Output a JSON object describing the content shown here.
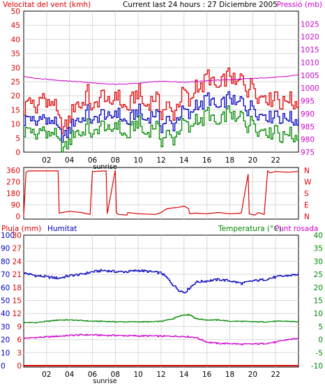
{
  "header": {
    "left_title": "Velocitat del vent (kmh)",
    "center_title": "Current last 24 hours : 27 Diciembre 2005",
    "right_title": "Pressió (mb)"
  },
  "bottom_header": {
    "left_title": "Pluja (mm)",
    "humidity_title": "Humitat",
    "temp_title": "Temperatura (°C)",
    "dew_title": "Punt rosada"
  },
  "colors": {
    "wind": "#dd0000",
    "gust": "#0000bb",
    "avg": "#008800",
    "pressure": "#cc00cc",
    "direction": "#dd0000",
    "humidity": "#0000bb",
    "temperature": "#008800",
    "dew": "#cc00cc",
    "rain": "#dd0000",
    "axis_left": "#dd0000",
    "axis_right": "#cc00cc",
    "axis_green": "#008800",
    "frame": "#000000",
    "grid": "#d8d8d8"
  },
  "chart_data": [
    {
      "type": "line",
      "name": "wind_pressure",
      "x_ticks": [
        "02",
        "04",
        "06",
        "08",
        "10",
        "12",
        "14",
        "16",
        "18",
        "20",
        "22"
      ],
      "x_annotation": "sunrise",
      "left_axis": {
        "ticks": [
          0,
          5,
          10,
          15,
          20,
          25,
          30,
          35,
          40,
          45,
          50
        ],
        "range": [
          0,
          50
        ]
      },
      "right_axis": {
        "ticks": [
          975,
          980,
          985,
          990,
          995,
          1000,
          1005,
          1010,
          1015,
          1020,
          1025
        ],
        "range": [
          975,
          1030
        ]
      },
      "series": [
        {
          "key": "wind_max",
          "axis": "left",
          "x": [
            0,
            0.5,
            1,
            1.5,
            2,
            2.5,
            3,
            3.5,
            4,
            4.5,
            5,
            5.5,
            6,
            6.5,
            7,
            7.5,
            8,
            8.5,
            9,
            9.5,
            10,
            10.5,
            11,
            11.5,
            12,
            12.5,
            13,
            13.5,
            14,
            14.5,
            15,
            15.5,
            16,
            16.5,
            17,
            17.5,
            18,
            18.5,
            19,
            19.5,
            20,
            20.5,
            21,
            21.5,
            22,
            22.5,
            23,
            23.5,
            24
          ],
          "values": [
            15,
            20,
            13,
            22,
            16,
            19,
            11,
            8,
            12,
            18,
            16,
            22,
            14,
            19,
            21,
            15,
            22,
            17,
            15,
            19,
            22,
            16,
            18,
            20,
            14,
            17,
            13,
            18,
            22,
            16,
            25,
            22,
            28,
            24,
            22,
            26,
            28,
            23,
            27,
            22,
            25,
            19,
            21,
            18,
            22,
            16,
            20,
            17,
            19
          ]
        },
        {
          "key": "wind_gust",
          "axis": "left",
          "x": [
            0,
            0.5,
            1,
            1.5,
            2,
            2.5,
            3,
            3.5,
            4,
            4.5,
            5,
            5.5,
            6,
            6.5,
            7,
            7.5,
            8,
            8.5,
            9,
            9.5,
            10,
            10.5,
            11,
            11.5,
            12,
            12.5,
            13,
            13.5,
            14,
            14.5,
            15,
            15.5,
            16,
            16.5,
            17,
            17.5,
            18,
            18.5,
            19,
            19.5,
            20,
            20.5,
            21,
            21.5,
            22,
            22.5,
            23,
            23.5,
            24
          ],
          "values": [
            11,
            13,
            9,
            14,
            10,
            12,
            7,
            5,
            8,
            12,
            11,
            15,
            10,
            13,
            14,
            11,
            15,
            12,
            10,
            13,
            15,
            11,
            13,
            14,
            9,
            12,
            9,
            13,
            15,
            12,
            18,
            16,
            20,
            17,
            15,
            18,
            20,
            16,
            19,
            15,
            17,
            13,
            14,
            12,
            15,
            11,
            13,
            11,
            12
          ]
        },
        {
          "key": "wind_avg",
          "axis": "left",
          "x": [
            0,
            0.5,
            1,
            1.5,
            2,
            2.5,
            3,
            3.5,
            4,
            4.5,
            5,
            5.5,
            6,
            6.5,
            7,
            7.5,
            8,
            8.5,
            9,
            9.5,
            10,
            10.5,
            11,
            11.5,
            12,
            12.5,
            13,
            13.5,
            14,
            14.5,
            15,
            15.5,
            16,
            16.5,
            17,
            17.5,
            18,
            18.5,
            19,
            19.5,
            20,
            20.5,
            21,
            21.5,
            22,
            22.5,
            23,
            23.5,
            24
          ],
          "values": [
            7,
            9,
            4,
            10,
            5,
            8,
            3,
            1,
            4,
            8,
            6,
            10,
            5,
            9,
            10,
            6,
            11,
            7,
            5,
            9,
            11,
            6,
            8,
            10,
            4,
            7,
            4,
            8,
            11,
            7,
            13,
            10,
            15,
            11,
            9,
            13,
            15,
            10,
            14,
            9,
            12,
            7,
            9,
            6,
            10,
            4,
            8,
            5,
            7
          ]
        },
        {
          "key": "pressure",
          "axis": "right",
          "x": [
            0,
            1,
            2,
            3,
            4,
            5,
            6,
            7,
            8,
            9,
            10,
            11,
            12,
            13,
            14,
            15,
            16,
            17,
            18,
            19,
            20,
            21,
            22,
            23,
            24
          ],
          "values": [
            1004.5,
            1003.8,
            1003.4,
            1003.0,
            1002.7,
            1002.4,
            1002.0,
            1001.7,
            1001.5,
            1001.6,
            1001.9,
            1002.3,
            1002.6,
            1002.5,
            1002.3,
            1002.5,
            1002.9,
            1003.1,
            1003.3,
            1003.5,
            1003.7,
            1004.0,
            1004.2,
            1004.6,
            1005.2
          ]
        }
      ]
    },
    {
      "type": "line",
      "name": "wind_direction",
      "left_axis": {
        "ticks": [
          0,
          90,
          180,
          270,
          360
        ],
        "range": [
          0,
          360
        ]
      },
      "right_axis": {
        "ticks": [
          "N",
          "W",
          "S",
          "E",
          "N"
        ]
      },
      "series": [
        {
          "key": "direction",
          "x": [
            0,
            0.2,
            0.4,
            3.0,
            3.1,
            4.0,
            5.0,
            5.8,
            6.0,
            7.2,
            7.3,
            8.0,
            8.1,
            8.3,
            9.0,
            9.1,
            10.0,
            11.5,
            12.0,
            12.5,
            13.5,
            14.0,
            14.4,
            14.5,
            15.0,
            16.0,
            17.0,
            18.0,
            19.0,
            19.6,
            19.7,
            19.9,
            20.2,
            20.5,
            21.0,
            21.3,
            21.5,
            22.0,
            23.0,
            24.0
          ],
          "values": [
            5,
            345,
            355,
            355,
            25,
            40,
            30,
            15,
            350,
            355,
            20,
            360,
            25,
            15,
            10,
            30,
            20,
            15,
            30,
            60,
            70,
            80,
            60,
            20,
            25,
            20,
            30,
            20,
            25,
            330,
            20,
            15,
            10,
            30,
            15,
            355,
            340,
            350,
            345,
            350
          ]
        }
      ]
    },
    {
      "type": "line",
      "name": "rain_humidity_temperature",
      "x_ticks": [
        "02",
        "04",
        "06",
        "08",
        "10",
        "12",
        "14",
        "16",
        "18",
        "20",
        "22"
      ],
      "x_annotation": "sunrise",
      "rain_axis": {
        "ticks": [
          0,
          3,
          6,
          9,
          12,
          15,
          18,
          21,
          24,
          27,
          30
        ],
        "range": [
          0,
          30
        ]
      },
      "humidity_axis": {
        "ticks": [
          0,
          10,
          20,
          30,
          40,
          50,
          60,
          70,
          80,
          90,
          100
        ],
        "range": [
          0,
          100
        ]
      },
      "temp_axis": {
        "ticks": [
          -10,
          -5,
          0,
          5,
          10,
          15,
          20,
          25,
          30,
          35,
          40
        ],
        "range": [
          -10,
          40
        ]
      },
      "series": [
        {
          "key": "humidity",
          "axis": "humidity",
          "x": [
            0,
            1,
            2,
            3,
            4,
            5,
            6,
            7,
            8,
            9,
            10,
            11,
            12,
            12.5,
            13,
            13.5,
            14,
            14.5,
            15,
            16,
            17,
            18,
            19,
            20,
            21,
            22,
            23,
            24
          ],
          "values": [
            71,
            69,
            68,
            67,
            69,
            70,
            72,
            73,
            72,
            72,
            73,
            72,
            71,
            67,
            62,
            58,
            56,
            60,
            64,
            65,
            66,
            65,
            63,
            65,
            66,
            68,
            69,
            70
          ]
        },
        {
          "key": "temperature",
          "axis": "temp",
          "x": [
            0,
            1,
            2,
            3,
            4,
            5,
            6,
            7,
            8,
            9,
            10,
            11,
            12,
            12.5,
            13,
            13.5,
            14,
            14.5,
            15,
            16,
            17,
            18,
            19,
            20,
            21,
            22,
            23,
            24
          ],
          "values": [
            6.5,
            6.5,
            7.0,
            7.5,
            7.5,
            7.3,
            7.0,
            7.0,
            6.8,
            6.8,
            6.8,
            6.8,
            7.0,
            7.5,
            8.0,
            9.0,
            9.5,
            9.5,
            8.0,
            7.5,
            7.5,
            7.0,
            7.0,
            6.8,
            6.8,
            7.0,
            7.0,
            6.8
          ]
        },
        {
          "key": "dew_point",
          "axis": "temp",
          "x": [
            0,
            1,
            2,
            3,
            4,
            5,
            6,
            7,
            8,
            9,
            10,
            11,
            12,
            13,
            14,
            15,
            16,
            17,
            18,
            19,
            20,
            21,
            22,
            23,
            24
          ],
          "values": [
            0.5,
            0.8,
            1.0,
            1.3,
            1.6,
            1.8,
            1.8,
            1.6,
            1.6,
            1.5,
            1.4,
            1.4,
            1.3,
            1.3,
            1.2,
            0.8,
            -1.0,
            -1.5,
            -1.5,
            -1.8,
            -1.7,
            -1.5,
            -1.0,
            0.0,
            0.5
          ]
        },
        {
          "key": "rain",
          "axis": "rain",
          "x": [
            0,
            24
          ],
          "values": [
            0,
            0
          ]
        }
      ]
    }
  ]
}
